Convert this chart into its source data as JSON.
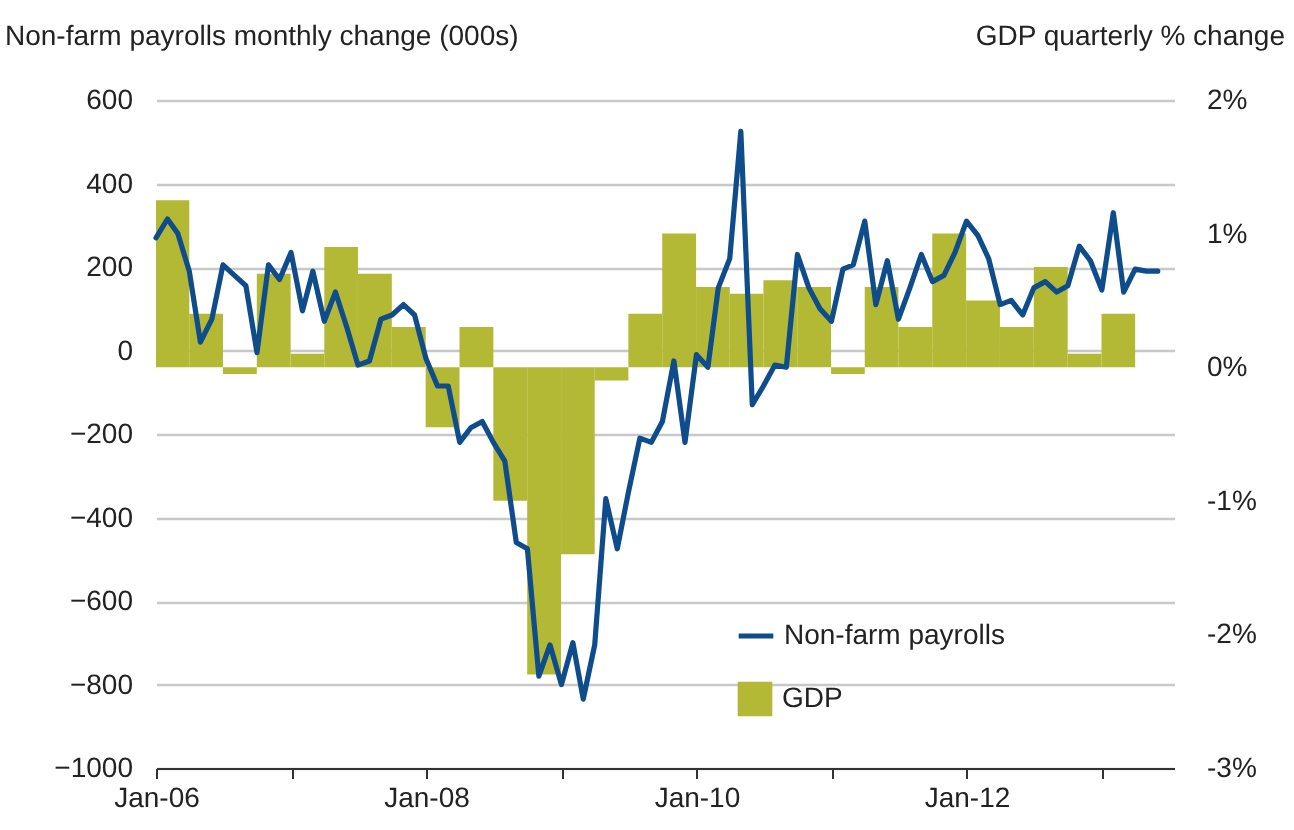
{
  "chart_data": {
    "type": "line",
    "ylabel": "Non-farm payrolls monthly change (000s)",
    "y2label": "GDP quarterly % change",
    "xlim": [
      "2006-01",
      "2013-07-15"
    ],
    "xticks": [
      {
        "value": "2006-01",
        "label": "Jan-06"
      },
      {
        "value": "2007-01",
        "label": null
      },
      {
        "value": "2008-01",
        "label": "Jan-08"
      },
      {
        "value": "2009-01",
        "label": null
      },
      {
        "value": "2010-01",
        "label": "Jan-10"
      },
      {
        "value": "2011-01",
        "label": null
      },
      {
        "value": "2012-01",
        "label": "Jan-12"
      },
      {
        "value": "2013-01",
        "label": null
      }
    ],
    "ylim": [
      -1000,
      600
    ],
    "yticks": [
      -1000,
      -800,
      -600,
      -400,
      -200,
      0,
      200,
      400,
      600
    ],
    "y2lim": [
      -3,
      2
    ],
    "y2ticks": [
      {
        "value": -3,
        "label": "-3%"
      },
      {
        "value": -2,
        "label": "-2%"
      },
      {
        "value": -1,
        "label": "-1%"
      },
      {
        "value": 0,
        "label": "0%"
      },
      {
        "value": 1,
        "label": "1%"
      },
      {
        "value": 2,
        "label": "2%"
      }
    ],
    "grid": "y",
    "legend": "bottom right",
    "marker": "none",
    "line_style": "solid",
    "series": [
      {
        "name": "GDP",
        "type": "bar",
        "axis": "y2",
        "color": "#b3b935",
        "x": [
          "2006-02-15",
          "2006-05-16",
          "2006-08-16",
          "2006-11-15",
          "2007-02-15",
          "2007-05-16",
          "2007-08-16",
          "2007-11-15",
          "2008-02-15",
          "2008-05-16",
          "2008-08-16",
          "2008-11-15",
          "2009-02-15",
          "2009-05-16",
          "2009-08-16",
          "2009-11-15",
          "2010-02-15",
          "2010-05-16",
          "2010-08-16",
          "2010-11-15",
          "2011-02-15",
          "2011-05-16",
          "2011-08-16",
          "2011-11-15",
          "2012-02-15",
          "2012-05-16",
          "2012-08-16",
          "2012-11-15",
          "2013-02-15"
        ],
        "values": [
          1.25,
          0.4,
          -0.05,
          0.7,
          0.1,
          0.9,
          0.7,
          0.3,
          -0.45,
          0.3,
          -1.0,
          -2.3,
          -1.4,
          -0.1,
          0.4,
          1.0,
          0.6,
          0.55,
          0.65,
          0.6,
          -0.05,
          0.6,
          0.3,
          1.0,
          0.5,
          0.3,
          0.75,
          0.1,
          0.4
        ]
      },
      {
        "name": "Non-farm payrolls",
        "color": "#0f4c8c",
        "x": [
          "2006-01",
          "2006-02",
          "2006-03",
          "2006-04",
          "2006-05",
          "2006-06",
          "2006-07",
          "2006-08",
          "2006-09",
          "2006-10",
          "2006-11",
          "2006-12",
          "2007-01",
          "2007-02",
          "2007-03",
          "2007-04",
          "2007-05",
          "2007-06",
          "2007-07",
          "2007-08",
          "2007-09",
          "2007-10",
          "2007-11",
          "2007-12",
          "2008-01",
          "2008-02",
          "2008-03",
          "2008-04",
          "2008-05",
          "2008-06",
          "2008-07",
          "2008-08",
          "2008-09",
          "2008-10",
          "2008-11",
          "2008-12",
          "2009-01",
          "2009-02",
          "2009-03",
          "2009-04",
          "2009-05",
          "2009-06",
          "2009-07",
          "2009-08",
          "2009-09",
          "2009-10",
          "2009-11",
          "2009-12",
          "2010-01",
          "2010-02",
          "2010-03",
          "2010-04",
          "2010-05",
          "2010-06",
          "2010-07",
          "2010-08",
          "2010-09",
          "2010-10",
          "2010-11",
          "2010-12",
          "2011-01",
          "2011-02",
          "2011-03",
          "2011-04",
          "2011-05",
          "2011-06",
          "2011-07",
          "2011-08",
          "2011-09",
          "2011-10",
          "2011-11",
          "2011-12",
          "2012-01",
          "2012-02",
          "2012-03",
          "2012-04",
          "2012-05",
          "2012-06",
          "2012-07",
          "2012-08",
          "2012-09",
          "2012-10",
          "2012-11",
          "2012-12",
          "2013-01",
          "2013-02",
          "2013-03",
          "2013-04",
          "2013-05",
          "2013-06"
        ],
        "values": [
          270,
          315,
          280,
          190,
          20,
          75,
          205,
          180,
          155,
          -5,
          205,
          170,
          235,
          95,
          190,
          70,
          140,
          55,
          -35,
          -25,
          75,
          85,
          110,
          85,
          -20,
          -85,
          -85,
          -220,
          -185,
          -170,
          -220,
          -265,
          -460,
          -475,
          -780,
          -705,
          -800,
          -700,
          -835,
          -705,
          -355,
          -475,
          -340,
          -210,
          -220,
          -170,
          -25,
          -220,
          -10,
          -40,
          150,
          220,
          525,
          -130,
          -85,
          -35,
          -40,
          230,
          150,
          100,
          70,
          195,
          205,
          310,
          110,
          215,
          75,
          150,
          230,
          165,
          180,
          235,
          310,
          275,
          220,
          110,
          120,
          85,
          150,
          165,
          140,
          155,
          250,
          215,
          145,
          330,
          140,
          195,
          190,
          190
        ]
      }
    ]
  }
}
